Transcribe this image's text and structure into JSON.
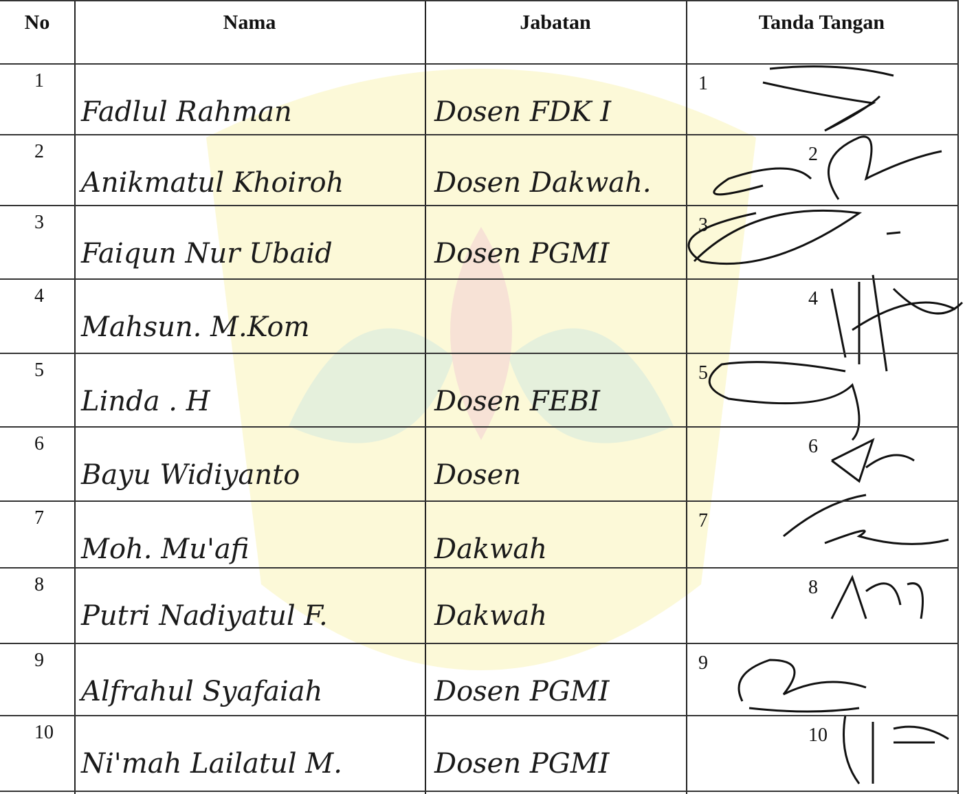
{
  "table": {
    "headers": [
      "No",
      "Nama",
      "Jabatan",
      "Tanda Tangan"
    ],
    "rows": [
      {
        "no": 1,
        "nama": "Fadlul Rahman",
        "jabatan": "Dosen FDK I",
        "ttd": 1
      },
      {
        "no": 2,
        "nama": "Anikmatul Khoiroh",
        "jabatan": "Dosen Dakwah.",
        "ttd": 2
      },
      {
        "no": 3,
        "nama": "Faiqun Nur Ubaid",
        "jabatan": "Dosen PGMI",
        "ttd": 3
      },
      {
        "no": 4,
        "nama": "Mahsun. M.Kom",
        "ttd": 4
      },
      {
        "no": 5,
        "nama": "Linda . H",
        "jabatan": "Dosen FEBI",
        "ttd": 5
      },
      {
        "no": 6,
        "nama": "Bayu Widiyanto",
        "jabatan": "Dosen",
        "ttd": 6
      },
      {
        "no": 7,
        "nama": "Moh. Mu'afi",
        "jabatan": "Dakwah",
        "ttd": 7
      },
      {
        "no": 8,
        "nama": "Putri Nadiyatul F.",
        "jabatan": "Dakwah",
        "ttd": 8
      },
      {
        "no": 9,
        "nama": "Alfrahul Syafaiah",
        "jabatan": "Dosen PGMI",
        "ttd": 9
      },
      {
        "no": 10,
        "nama": "Ni'mah Lailatul M.",
        "jabatan": "Dosen PGMI",
        "ttd": 10
      }
    ]
  }
}
